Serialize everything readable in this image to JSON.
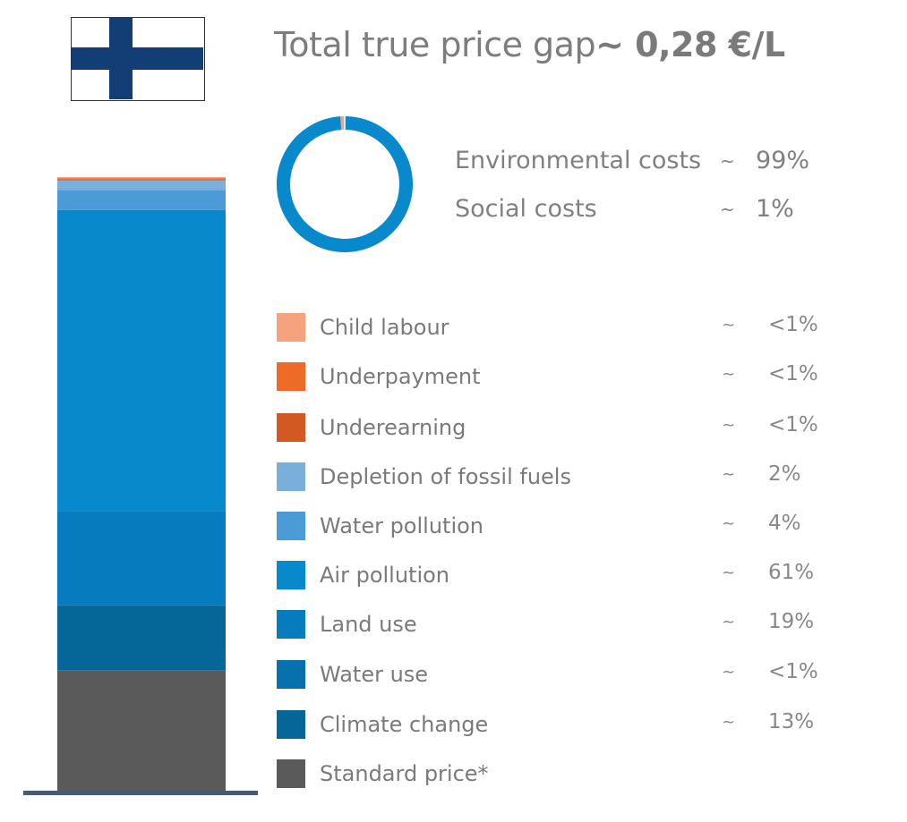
{
  "flag": {
    "country": "Finland",
    "colors": {
      "field": "#ffffff",
      "cross": "#123e75"
    }
  },
  "chart_data": {
    "type": "bar",
    "title": "Total true price gap",
    "title_value": "~ 0,28 €/L",
    "stack_order_bottom_to_top": [
      "Standard price*",
      "Climate change",
      "Water use",
      "Land use",
      "Air pollution",
      "Water pollution",
      "Depletion of fossil fuels",
      "Underearning",
      "Underpayment",
      "Child labour"
    ],
    "donut": {
      "series": [
        {
          "name": "Environmental costs",
          "tilde": "~",
          "display": "99%",
          "value": 99,
          "color": "#0789cb"
        },
        {
          "name": "Social costs",
          "tilde": "~",
          "display": "1%",
          "value": 1,
          "color": "#f4a37e"
        }
      ]
    },
    "legend": [
      {
        "name": "Child labour",
        "tilde": "~",
        "display": "<1%",
        "value": 0.1,
        "color": "#f4a37e"
      },
      {
        "name": "Underpayment",
        "tilde": "~",
        "display": "<1%",
        "value": 0.2,
        "color": "#ed6b26"
      },
      {
        "name": "Underearning",
        "tilde": "~",
        "display": "<1%",
        "value": 0.1,
        "color": "#d25a22"
      },
      {
        "name": "Depletion of fossil fuels",
        "tilde": "~",
        "display": "2%",
        "value": 2,
        "color": "#7aaedb"
      },
      {
        "name": "Water pollution",
        "tilde": "~",
        "display": "4%",
        "value": 4,
        "color": "#4a9bd6"
      },
      {
        "name": "Air pollution",
        "tilde": "~",
        "display": "61%",
        "value": 61,
        "color": "#0789cb"
      },
      {
        "name": "Land use",
        "tilde": "~",
        "display": "19%",
        "value": 19,
        "color": "#067bbd"
      },
      {
        "name": "Water use",
        "tilde": "~",
        "display": "<1%",
        "value": 0.1,
        "color": "#0770ad"
      },
      {
        "name": "Climate change",
        "tilde": "~",
        "display": "13%",
        "value": 13,
        "color": "#056698"
      },
      {
        "name": "Standard price*",
        "tilde": "",
        "display": "",
        "value": 0,
        "color": "#5a5a5a"
      }
    ],
    "standard_price_share_of_total_bar": 0.197,
    "axis_color": "#4a5a6e"
  }
}
